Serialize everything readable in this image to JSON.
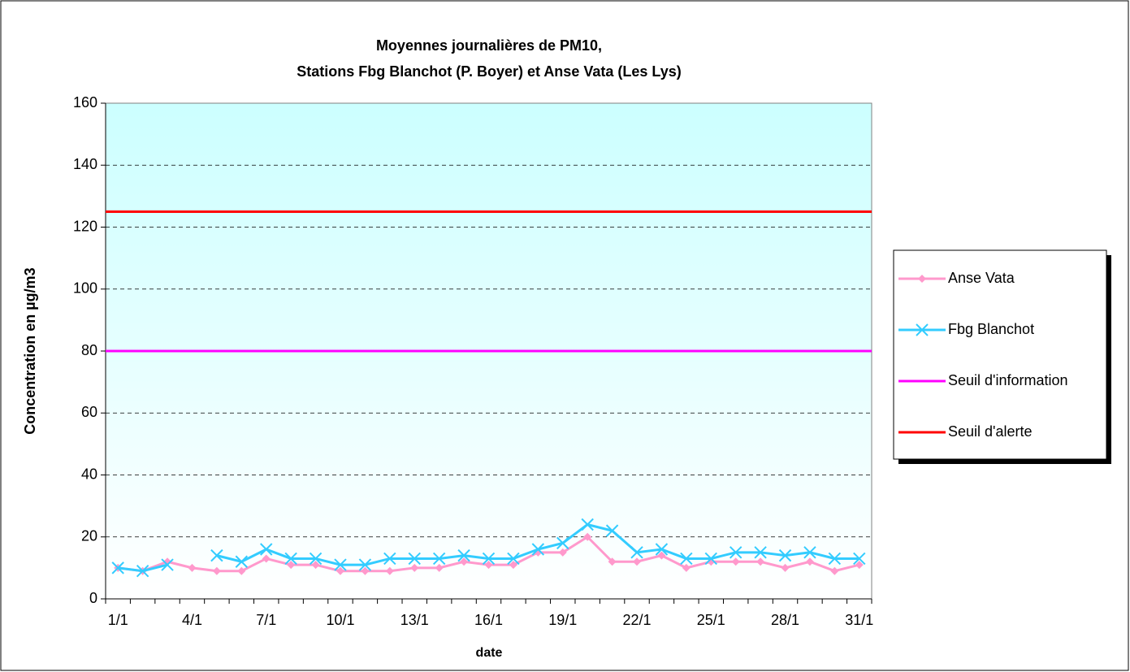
{
  "chart_data": {
    "type": "line",
    "title": "Moyennes journalières de PM10,",
    "subtitle": "Stations Fbg Blanchot (P. Boyer) et Anse Vata (Les Lys)",
    "x_label": "date",
    "y_label": "Concentration en µg/m3",
    "categories": [
      "1/1",
      null,
      null,
      "4/1",
      null,
      null,
      "7/1",
      null,
      null,
      "10/1",
      null,
      null,
      "13/1",
      null,
      null,
      "16/1",
      null,
      null,
      "19/1",
      null,
      null,
      "22/1",
      null,
      null,
      "25/1",
      null,
      null,
      "28/1",
      null,
      null,
      "31/1"
    ],
    "ylim": [
      0,
      160
    ],
    "yticks": [
      0,
      20,
      40,
      60,
      80,
      100,
      120,
      140,
      160
    ],
    "grid": true,
    "series": [
      {
        "name": "Anse Vata",
        "color": "#ff99cc",
        "marker": "diamond",
        "values": [
          10,
          9,
          12,
          10,
          9,
          9,
          13,
          11,
          11,
          9,
          9,
          9,
          10,
          10,
          12,
          11,
          11,
          15,
          15,
          20,
          12,
          12,
          14,
          10,
          12,
          12,
          12,
          10,
          12,
          9,
          11
        ]
      },
      {
        "name": "Fbg Blanchot",
        "color": "#33ccff",
        "marker": "x",
        "values": [
          10,
          9,
          11,
          null,
          14,
          12,
          16,
          13,
          13,
          11,
          11,
          13,
          13,
          13,
          14,
          13,
          13,
          16,
          18,
          24,
          22,
          15,
          16,
          13,
          13,
          15,
          15,
          14,
          15,
          13,
          13
        ]
      },
      {
        "name": "Seuil d'information",
        "color": "#ff00ff",
        "value": 80
      },
      {
        "name": "Seuil d'alerte",
        "color": "#ff0000",
        "value": 125
      }
    ]
  }
}
